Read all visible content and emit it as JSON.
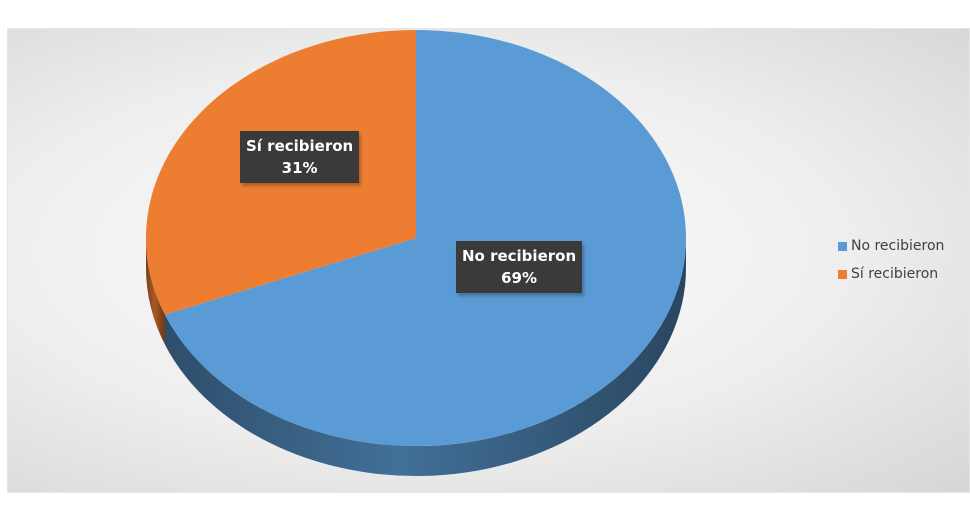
{
  "chart_data": {
    "type": "pie",
    "categories": [
      "No recibieron",
      "Sí recibieron"
    ],
    "values": [
      69,
      31
    ],
    "colors": [
      "#5b9bd5",
      "#ed7d31"
    ],
    "data_labels": [
      {
        "category": "No recibieron",
        "percent": "69%"
      },
      {
        "category": "Sí recibieron",
        "percent": "31%"
      }
    ],
    "legend": [
      "No recibieron",
      "Sí recibieron"
    ],
    "legend_position": "right",
    "style": "3d"
  }
}
